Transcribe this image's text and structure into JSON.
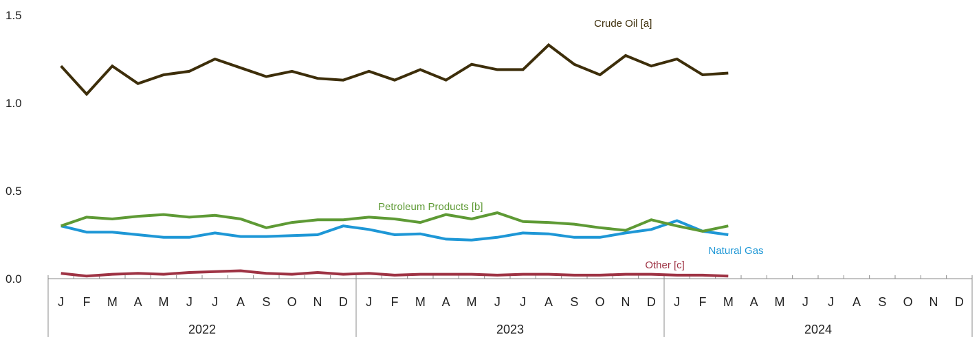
{
  "chart_data": {
    "type": "line",
    "title": "",
    "xlabel": "",
    "ylabel": "",
    "ylim": [
      0,
      1.5
    ],
    "y_ticks": [
      0.0,
      0.5,
      1.0,
      1.5
    ],
    "y_tick_labels": [
      "0.0",
      "0.5",
      "1.0",
      "1.5"
    ],
    "grid": false,
    "years": [
      {
        "label": "2022",
        "months": [
          "J",
          "F",
          "M",
          "A",
          "M",
          "J",
          "J",
          "A",
          "S",
          "O",
          "N",
          "D"
        ]
      },
      {
        "label": "2023",
        "months": [
          "J",
          "F",
          "M",
          "A",
          "M",
          "J",
          "J",
          "A",
          "S",
          "O",
          "N",
          "D"
        ]
      },
      {
        "label": "2024",
        "months": [
          "J",
          "F",
          "M",
          "A",
          "M",
          "J",
          "J",
          "A",
          "S",
          "O",
          "N",
          "D"
        ]
      }
    ],
    "series": [
      {
        "name": "Crude Oil [a]",
        "color": "#3d2e0a",
        "values": [
          1.21,
          1.05,
          1.21,
          1.11,
          1.16,
          1.18,
          1.25,
          1.2,
          1.15,
          1.18,
          1.14,
          1.13,
          1.18,
          1.13,
          1.19,
          1.13,
          1.22,
          1.19,
          1.19,
          1.33,
          1.22,
          1.16,
          1.27,
          1.21,
          1.25,
          1.16,
          1.17
        ]
      },
      {
        "name": "Petroleum Products [b]",
        "color": "#5e9a35",
        "values": [
          0.3,
          0.35,
          0.34,
          0.355,
          0.365,
          0.35,
          0.36,
          0.34,
          0.29,
          0.32,
          0.335,
          0.335,
          0.35,
          0.34,
          0.32,
          0.365,
          0.34,
          0.375,
          0.325,
          0.32,
          0.31,
          0.29,
          0.275,
          0.335,
          0.3,
          0.27,
          0.3
        ]
      },
      {
        "name": "Natural Gas",
        "color": "#1e97d6",
        "values": [
          0.3,
          0.265,
          0.265,
          0.25,
          0.235,
          0.235,
          0.26,
          0.24,
          0.24,
          0.245,
          0.25,
          0.3,
          0.28,
          0.25,
          0.255,
          0.225,
          0.22,
          0.235,
          0.26,
          0.255,
          0.235,
          0.235,
          0.26,
          0.28,
          0.33,
          0.27,
          0.25
        ]
      },
      {
        "name": "Other [c]",
        "color": "#9e3344",
        "values": [
          0.03,
          0.015,
          0.025,
          0.03,
          0.025,
          0.035,
          0.04,
          0.045,
          0.03,
          0.025,
          0.035,
          0.025,
          0.03,
          0.02,
          0.025,
          0.025,
          0.025,
          0.02,
          0.025,
          0.025,
          0.02,
          0.02,
          0.025,
          0.025,
          0.02,
          0.02,
          0.015
        ]
      }
    ]
  }
}
